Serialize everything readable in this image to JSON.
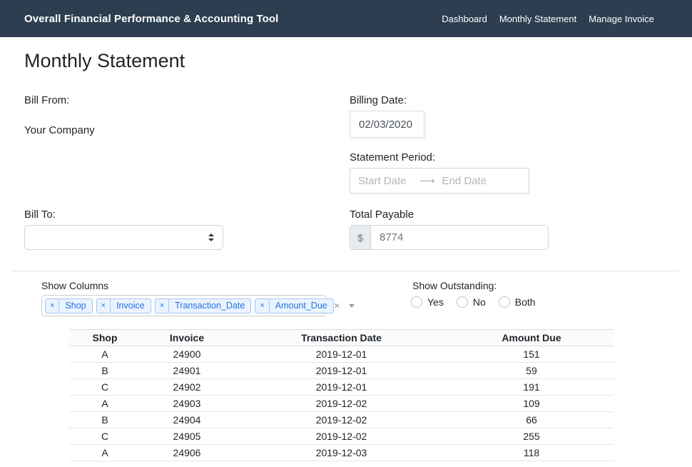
{
  "header": {
    "title": "Overall Financial Performance & Accounting Tool",
    "nav": [
      "Dashboard",
      "Monthly Statement",
      "Manage Invoice"
    ]
  },
  "page_title": "Monthly Statement",
  "form": {
    "bill_from_label": "Bill From:",
    "bill_from_value": "Your Company",
    "billing_date_label": "Billing Date:",
    "billing_date_value": "02/03/2020",
    "statement_period_label": "Statement Period:",
    "start_date_placeholder": "Start Date",
    "end_date_placeholder": "End Date",
    "bill_to_label": "Bill To:",
    "bill_to_value": "",
    "total_payable_label": "Total Payable",
    "currency_symbol": "$",
    "total_payable_value": "8774"
  },
  "filters": {
    "show_columns_label": "Show Columns",
    "selected_columns": [
      "Shop",
      "Invoice",
      "Transaction_Date",
      "Amount_Due"
    ],
    "show_outstanding_label": "Show Outstanding:",
    "outstanding_options": [
      "Yes",
      "No",
      "Both"
    ],
    "outstanding_selected": ""
  },
  "icons": {
    "remove_tag": "×",
    "clear_select": "×",
    "range_arrow": "⟶"
  },
  "table": {
    "columns": [
      "Shop",
      "Invoice",
      "Transaction Date",
      "Amount Due"
    ],
    "rows": [
      [
        "A",
        "24900",
        "2019-12-01",
        "151"
      ],
      [
        "B",
        "24901",
        "2019-12-01",
        "59"
      ],
      [
        "C",
        "24902",
        "2019-12-01",
        "191"
      ],
      [
        "A",
        "24903",
        "2019-12-02",
        "109"
      ],
      [
        "B",
        "24904",
        "2019-12-02",
        "66"
      ],
      [
        "C",
        "24905",
        "2019-12-02",
        "255"
      ],
      [
        "A",
        "24906",
        "2019-12-03",
        "118"
      ]
    ]
  },
  "colors": {
    "header_bg": "#2c3e50",
    "tag_text": "#2173e2",
    "tag_bg": "#ebf3fe",
    "tag_border": "#a3c7f3",
    "addon_bg": "#e9ecef"
  }
}
